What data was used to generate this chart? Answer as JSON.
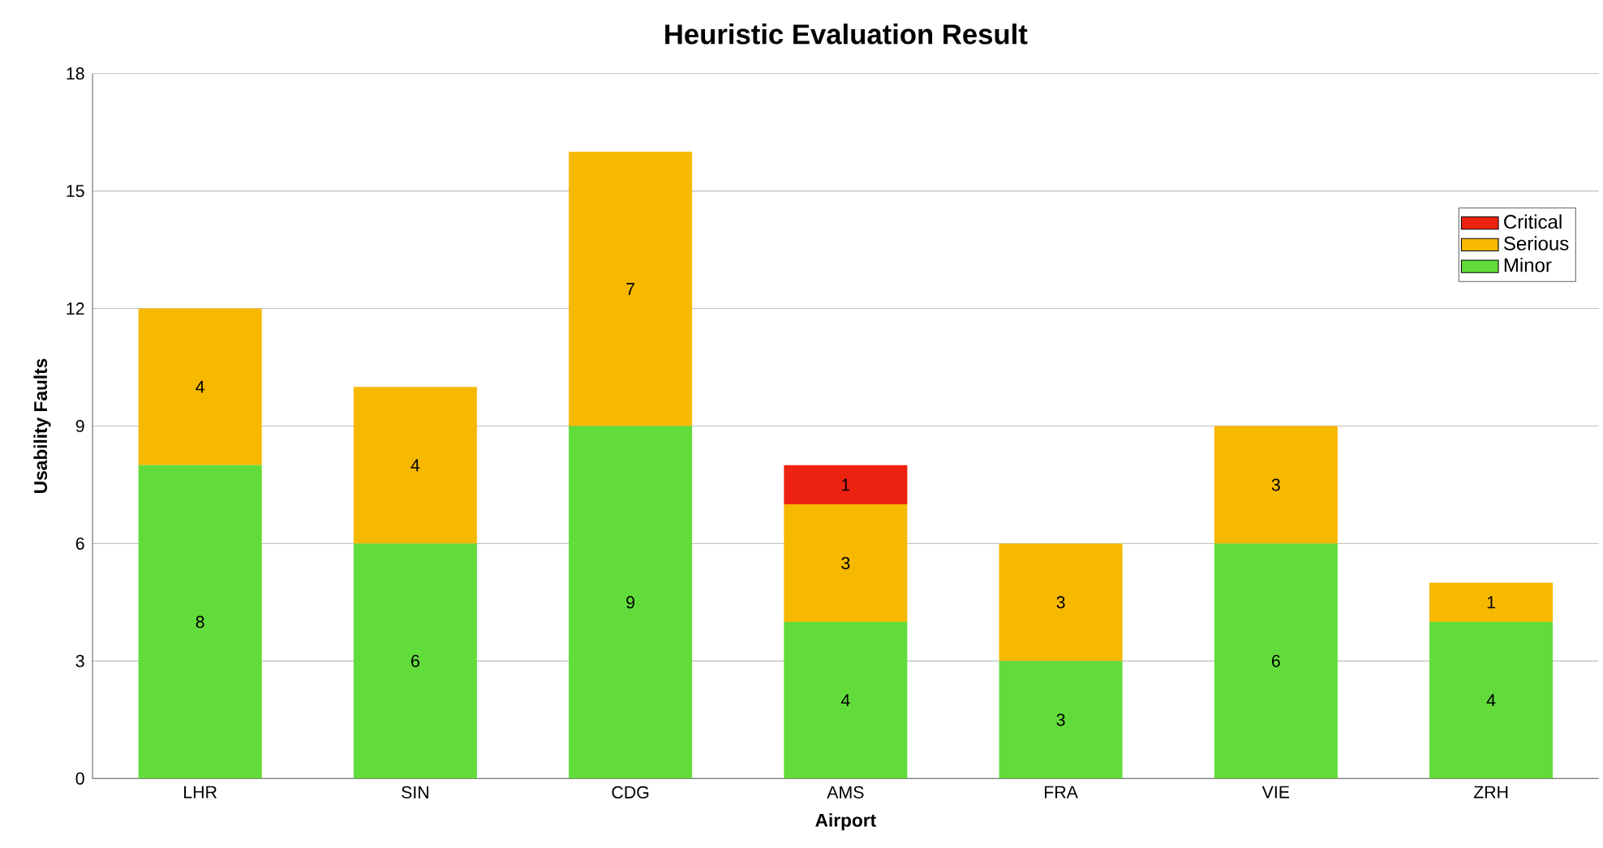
{
  "chart_data": {
    "type": "bar",
    "title": "Heuristic Evaluation Result",
    "xlabel": "Airport",
    "ylabel": "Usability Faults",
    "categories": [
      "LHR",
      "SIN",
      "CDG",
      "AMS",
      "FRA",
      "VIE",
      "ZRH"
    ],
    "series": [
      {
        "name": "Minor",
        "color": "#62dc3a",
        "values": [
          8,
          6,
          9,
          4,
          3,
          6,
          4
        ]
      },
      {
        "name": "Serious",
        "color": "#f7b800",
        "values": [
          4,
          4,
          7,
          3,
          3,
          3,
          1
        ]
      },
      {
        "name": "Critical",
        "color": "#ee2211",
        "values": [
          null,
          null,
          null,
          1,
          null,
          null,
          null
        ]
      }
    ],
    "stacked": true,
    "data_labels": true,
    "grid": "y",
    "legend": "top right",
    "ylim": [
      0,
      18
    ],
    "yticks": [
      0,
      3,
      6,
      9,
      12,
      15,
      18
    ]
  }
}
